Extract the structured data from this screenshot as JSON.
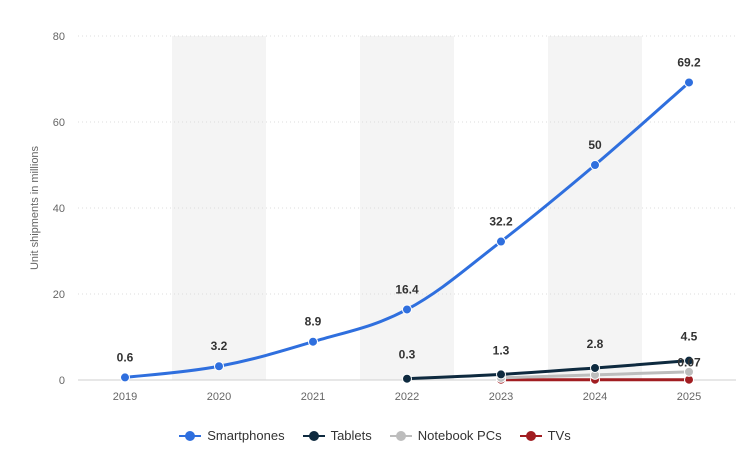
{
  "chart_data": {
    "type": "line",
    "ylabel": "Unit shipments in millions",
    "xlabel": "",
    "x": [
      "2019",
      "2020",
      "2021",
      "2022",
      "2023",
      "2024",
      "2025"
    ],
    "ylim": [
      0,
      80
    ],
    "yticks": [
      0,
      20,
      40,
      60,
      80
    ],
    "grid": "horizontal-dotted",
    "legend_position": "bottom",
    "series": [
      {
        "name": "Smartphones",
        "color": "#2f6fde",
        "values": [
          0.6,
          3.2,
          8.9,
          16.4,
          32.2,
          50,
          69.2
        ],
        "labels": [
          "0.6",
          "3.2",
          "8.9",
          "16.4",
          "32.2",
          "50",
          "69.2"
        ]
      },
      {
        "name": "Tablets",
        "color": "#0e2a3f",
        "values": [
          null,
          null,
          null,
          0.3,
          1.3,
          2.8,
          4.5
        ],
        "labels": [
          null,
          null,
          null,
          "0.3",
          "1.3",
          "2.8",
          "4.5"
        ]
      },
      {
        "name": "Notebook PCs",
        "color": "#bdbdbd",
        "values": [
          null,
          null,
          null,
          null,
          0.5,
          1.2,
          1.9
        ],
        "labels": [
          null,
          null,
          null,
          null,
          null,
          null,
          null
        ]
      },
      {
        "name": "TVs",
        "color": "#a11d21",
        "values": [
          null,
          null,
          null,
          null,
          0.07,
          0.07,
          0.07
        ],
        "labels": [
          null,
          null,
          null,
          null,
          null,
          null,
          "0.07"
        ]
      }
    ]
  }
}
